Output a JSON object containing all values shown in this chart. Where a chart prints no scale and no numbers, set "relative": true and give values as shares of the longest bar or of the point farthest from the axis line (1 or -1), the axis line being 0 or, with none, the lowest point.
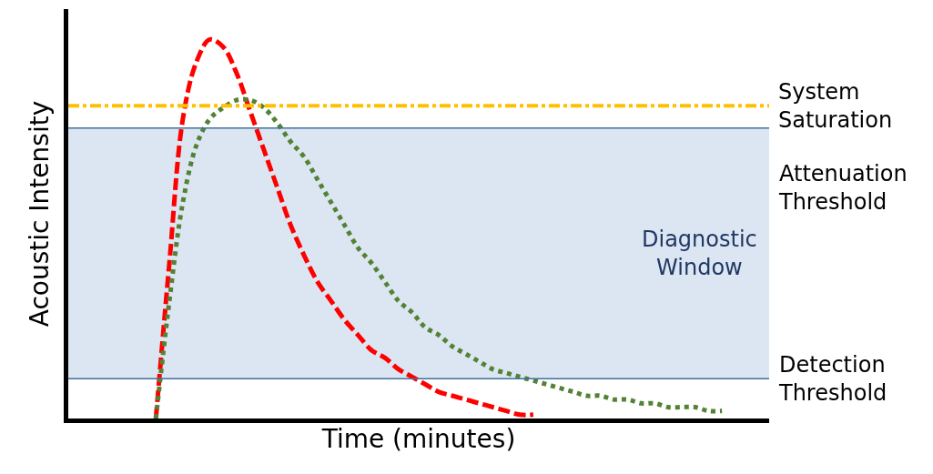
{
  "chart_data": {
    "type": "line",
    "relative": true,
    "xlabel": "Time (minutes)",
    "ylabel": "Acoustic Intensity",
    "categories": [
      null,
      null,
      null,
      null,
      null,
      null,
      null,
      null,
      null,
      null,
      null,
      null,
      null,
      null,
      null,
      null,
      null,
      null,
      null,
      null,
      null,
      null,
      null,
      null,
      null,
      null,
      null,
      null,
      null,
      null,
      null,
      null,
      null,
      null,
      null,
      null,
      null,
      null,
      null,
      null,
      null,
      null,
      null,
      null,
      null,
      null,
      null,
      null,
      null,
      null,
      null,
      null
    ],
    "series": [
      {
        "color": "#ff0000",
        "line_style": "dashed",
        "values": [
          null,
          null,
          null,
          null,
          null,
          null,
          0,
          0.41,
          0.79,
          0.94,
          1.0,
          0.98,
          0.91,
          0.81,
          0.71,
          0.61,
          0.51,
          0.43,
          0.36,
          0.31,
          0.26,
          0.22,
          0.18,
          0.16,
          0.13,
          0.11,
          0.09,
          0.07,
          0.06,
          0.05,
          0.04,
          0.03,
          0.02,
          0.01,
          0.01,
          null,
          null,
          null,
          null,
          null,
          null,
          null,
          null,
          null,
          null,
          null,
          null,
          null,
          null,
          null,
          null,
          null
        ]
      },
      {
        "color": "#548235",
        "line_style": "dotted",
        "values": [
          null,
          null,
          null,
          null,
          null,
          null,
          0,
          0.31,
          0.57,
          0.72,
          0.79,
          0.82,
          0.84,
          0.84,
          0.82,
          0.78,
          0.73,
          0.69,
          0.63,
          0.57,
          0.51,
          0.45,
          0.41,
          0.36,
          0.31,
          0.28,
          0.24,
          0.22,
          0.19,
          0.17,
          0.15,
          0.13,
          0.12,
          0.11,
          0.1,
          0.09,
          0.08,
          0.07,
          0.06,
          0.06,
          0.05,
          0.05,
          0.04,
          0.04,
          0.03,
          0.03,
          0.03,
          0.02,
          0.02,
          null,
          null,
          null
        ]
      }
    ],
    "bands": [
      {
        "axis": "y",
        "from": 0.105,
        "to": 0.766,
        "label": "Diagnostic\nWindow",
        "color": "#dce6f2"
      }
    ],
    "ref_lines": [
      {
        "axis": "y",
        "value": 0.825,
        "label": "System\nSaturation",
        "color": "#ffc000",
        "line_style": "dashdot"
      },
      {
        "axis": "y",
        "value": 0.766,
        "label": "Attenuation\nThreshold",
        "color": "#41719c",
        "line_style": "solid"
      },
      {
        "axis": "y",
        "value": 0.105,
        "label": "Detection\nThreshold",
        "color": "#41719c",
        "line_style": "solid"
      }
    ],
    "marker": "none"
  }
}
